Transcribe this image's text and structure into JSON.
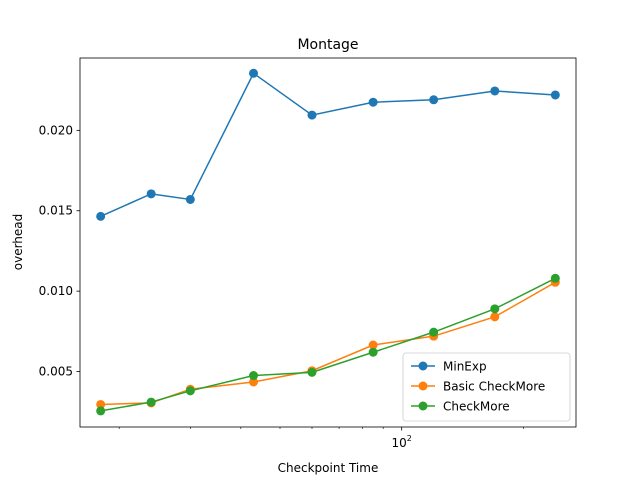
{
  "chart_data": {
    "type": "line",
    "title": "Montage",
    "xlabel": "Checkpoint Time",
    "ylabel": "overhead",
    "xscale": "log",
    "xlim": [
      16,
      270
    ],
    "ylim": [
      0.00155,
      0.0245
    ],
    "major_xticks": [
      {
        "value": 100,
        "base": "10",
        "exp": "2"
      }
    ],
    "minor_xticks": [
      20,
      30,
      40,
      50,
      60,
      70,
      80,
      90,
      200
    ],
    "yticks": [
      {
        "value": 0.005,
        "label": "0.005"
      },
      {
        "value": 0.01,
        "label": "0.010"
      },
      {
        "value": 0.015,
        "label": "0.015"
      },
      {
        "value": 0.02,
        "label": "0.020"
      }
    ],
    "x": [
      18,
      24,
      30,
      43,
      60,
      85,
      120,
      170,
      240
    ],
    "series": [
      {
        "name": "MinExp",
        "color": "#1f77b4",
        "values": [
          0.01465,
          0.01605,
          0.0157,
          0.02355,
          0.02095,
          0.02175,
          0.0219,
          0.02245,
          0.0222
        ]
      },
      {
        "name": "Basic CheckMore",
        "color": "#ff7f0e",
        "values": [
          0.00295,
          0.00305,
          0.0039,
          0.00435,
          0.00505,
          0.00665,
          0.0072,
          0.0084,
          0.01055
        ]
      },
      {
        "name": "CheckMore",
        "color": "#2ca02c",
        "values": [
          0.00255,
          0.0031,
          0.0038,
          0.00475,
          0.00495,
          0.0062,
          0.00745,
          0.0089,
          0.0108
        ]
      }
    ],
    "grid": false,
    "legend_position": "lower-right"
  }
}
